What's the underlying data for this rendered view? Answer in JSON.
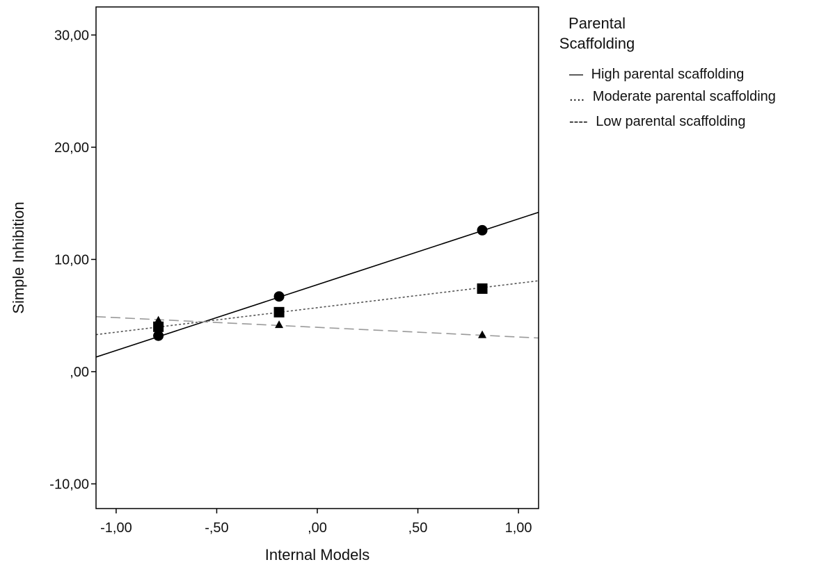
{
  "chart_data": {
    "type": "scatter",
    "xlabel": "Internal Models",
    "ylabel": "Simple Inhibition",
    "xlim": [
      -1.1,
      1.1
    ],
    "ylim": [
      -12.2,
      32.5
    ],
    "x_ticks": [
      {
        "value": -1.0,
        "label": "-1,00"
      },
      {
        "value": -0.5,
        "label": "-,50"
      },
      {
        "value": 0.0,
        "label": ",00"
      },
      {
        "value": 0.5,
        "label": ",50"
      },
      {
        "value": 1.0,
        "label": "1,00"
      }
    ],
    "y_ticks": [
      {
        "value": -10,
        "label": "-10,00"
      },
      {
        "value": 0,
        "label": ",00"
      },
      {
        "value": 10,
        "label": "10,00"
      },
      {
        "value": 20,
        "label": "20,00"
      },
      {
        "value": 30,
        "label": "30,00"
      }
    ],
    "grid": false,
    "legend": {
      "title": "Parental Scaffolding",
      "title_lines": [
        "Parental",
        "Scaffolding"
      ],
      "placement": "right",
      "entries": [
        {
          "prefix": "—",
          "label": "High parental scaffolding"
        },
        {
          "prefix": "....",
          "label": "Moderate parental scaffolding"
        },
        {
          "prefix": "----",
          "label": "Low parental scaffolding"
        }
      ]
    },
    "series": [
      {
        "key": "high",
        "marker": "circle",
        "line_style": "solid",
        "color": "#000000",
        "points": [
          {
            "x": -0.79,
            "y": 3.2
          },
          {
            "x": -0.19,
            "y": 6.7
          },
          {
            "x": 0.82,
            "y": 12.6
          }
        ],
        "fit_line": [
          {
            "x": -1.1,
            "y": 1.3
          },
          {
            "x": 1.1,
            "y": 14.2
          }
        ]
      },
      {
        "key": "moderate",
        "marker": "square",
        "line_style": "dotted",
        "color": "#555555",
        "points": [
          {
            "x": -0.79,
            "y": 4.0
          },
          {
            "x": -0.19,
            "y": 5.3
          },
          {
            "x": 0.82,
            "y": 7.4
          }
        ],
        "fit_line": [
          {
            "x": -1.1,
            "y": 3.3
          },
          {
            "x": 1.1,
            "y": 8.1
          }
        ]
      },
      {
        "key": "low",
        "marker": "triangle",
        "line_style": "dashed",
        "color": "#999999",
        "points": [
          {
            "x": -0.79,
            "y": 4.6
          },
          {
            "x": -0.19,
            "y": 4.2
          },
          {
            "x": 0.82,
            "y": 3.3
          }
        ],
        "fit_line": [
          {
            "x": -1.1,
            "y": 4.9
          },
          {
            "x": 1.1,
            "y": 3.0
          }
        ]
      }
    ]
  }
}
